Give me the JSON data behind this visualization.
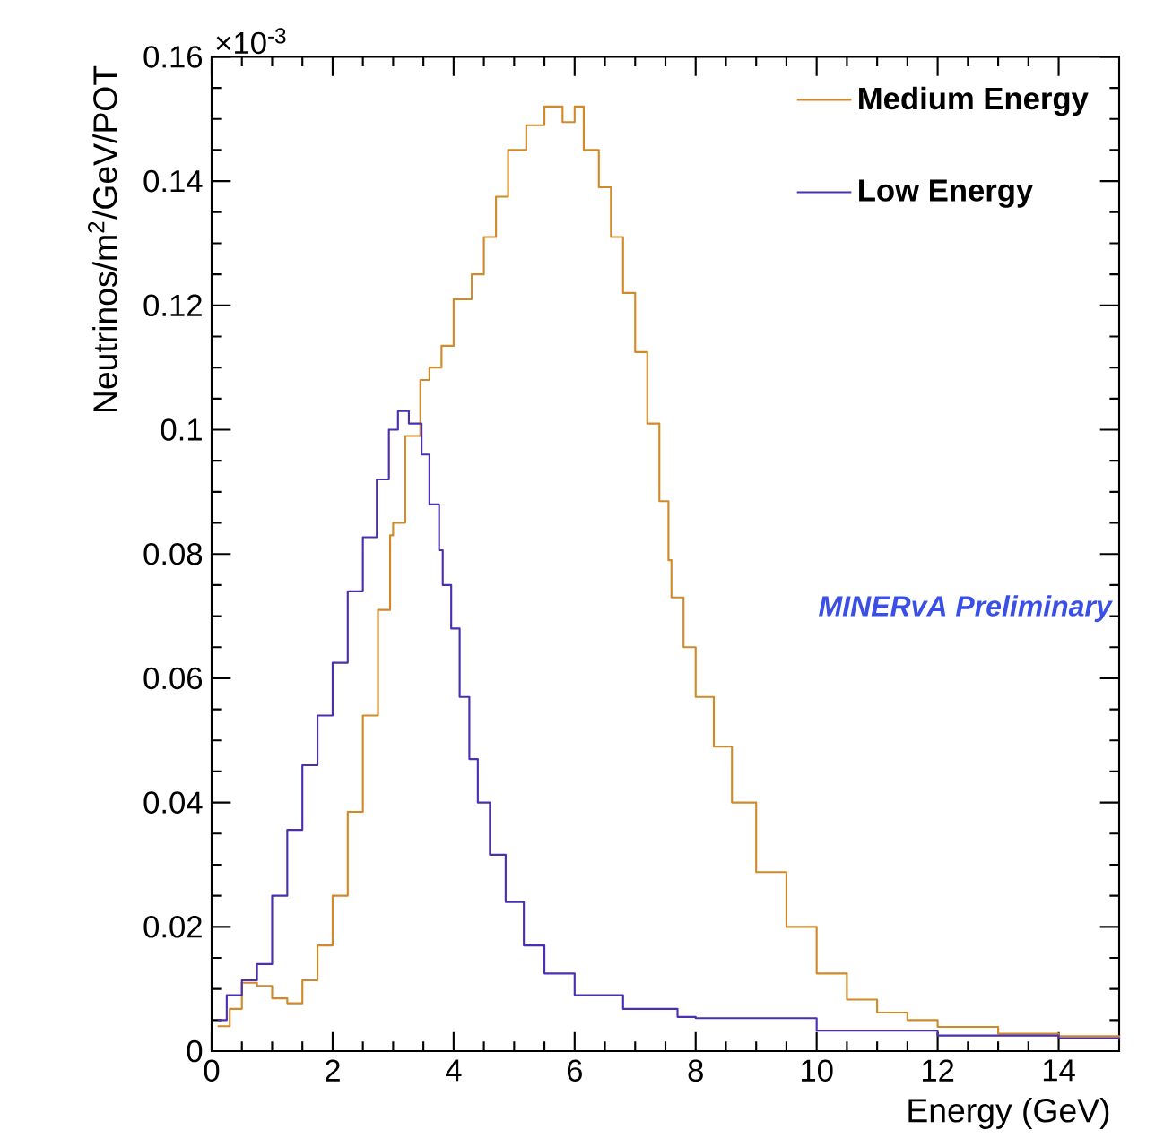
{
  "chart_data": {
    "type": "step",
    "xlabel": "Energy (GeV)",
    "ylabel": "Neutrinos/m$^{2}$/GeV/POT",
    "annotations": [
      "×10$^{-3}$",
      "MINERvA Preliminary"
    ],
    "xlim": [
      0,
      15
    ],
    "ylim": [
      0,
      0.16
    ],
    "xticks": [
      0,
      2,
      4,
      6,
      8,
      10,
      12,
      14
    ],
    "yticks": [
      0,
      0.02,
      0.04,
      0.06,
      0.08,
      0.1,
      0.12,
      0.14,
      0.16
    ],
    "legend": "top right",
    "marker": "none",
    "line_style": "solid",
    "grid": false,
    "series": [
      {
        "name": "Medium Energy",
        "color": "#d08a2a",
        "x": [
          0.1,
          0.3,
          0.5,
          0.75,
          1.0,
          1.25,
          1.5,
          1.75,
          2.0,
          2.25,
          2.5,
          2.75,
          2.95,
          3.0,
          3.2,
          3.45,
          3.6,
          3.8,
          4.0,
          4.3,
          4.5,
          4.7,
          4.9,
          5.2,
          5.5,
          5.8,
          6.0,
          6.15,
          6.4,
          6.6,
          6.8,
          7.0,
          7.2,
          7.4,
          7.55,
          7.6,
          7.8,
          8.0,
          8.3,
          8.6,
          9.0,
          9.5,
          10.0,
          10.5,
          11.0,
          11.5,
          12.0,
          13.0,
          14.0,
          15.0
        ],
        "values": [
          0.004,
          0.0068,
          0.011,
          0.0105,
          0.0085,
          0.0077,
          0.0114,
          0.017,
          0.025,
          0.0385,
          0.054,
          0.071,
          0.083,
          0.085,
          0.099,
          0.108,
          0.11,
          0.1135,
          0.121,
          0.125,
          0.131,
          0.1375,
          0.145,
          0.149,
          0.152,
          0.1495,
          0.152,
          0.145,
          0.139,
          0.131,
          0.122,
          0.1125,
          0.101,
          0.0885,
          0.079,
          0.073,
          0.065,
          0.057,
          0.049,
          0.04,
          0.0288,
          0.02,
          0.0125,
          0.0083,
          0.0062,
          0.005,
          0.0039,
          0.0028,
          0.0024,
          0.002
        ]
      },
      {
        "name": "Low Energy",
        "color": "#4a2fb0",
        "x": [
          0.1,
          0.25,
          0.5,
          0.75,
          1.0,
          1.25,
          1.5,
          1.75,
          2.0,
          2.25,
          2.5,
          2.73,
          2.93,
          3.08,
          3.26,
          3.47,
          3.6,
          3.76,
          3.82,
          3.96,
          4.1,
          4.26,
          4.4,
          4.6,
          4.86,
          5.16,
          5.5,
          6.0,
          6.8,
          7.7,
          8.0,
          10.0,
          12.0,
          14.0,
          15.0
        ],
        "values": [
          0.005,
          0.009,
          0.0114,
          0.014,
          0.025,
          0.0356,
          0.046,
          0.054,
          0.0625,
          0.074,
          0.0827,
          0.092,
          0.1,
          0.103,
          0.101,
          0.096,
          0.088,
          0.0806,
          0.075,
          0.068,
          0.057,
          0.047,
          0.04,
          0.0316,
          0.024,
          0.017,
          0.0125,
          0.009,
          0.0068,
          0.0055,
          0.0053,
          0.0033,
          0.0025,
          0.0021,
          0.0018
        ]
      }
    ]
  }
}
